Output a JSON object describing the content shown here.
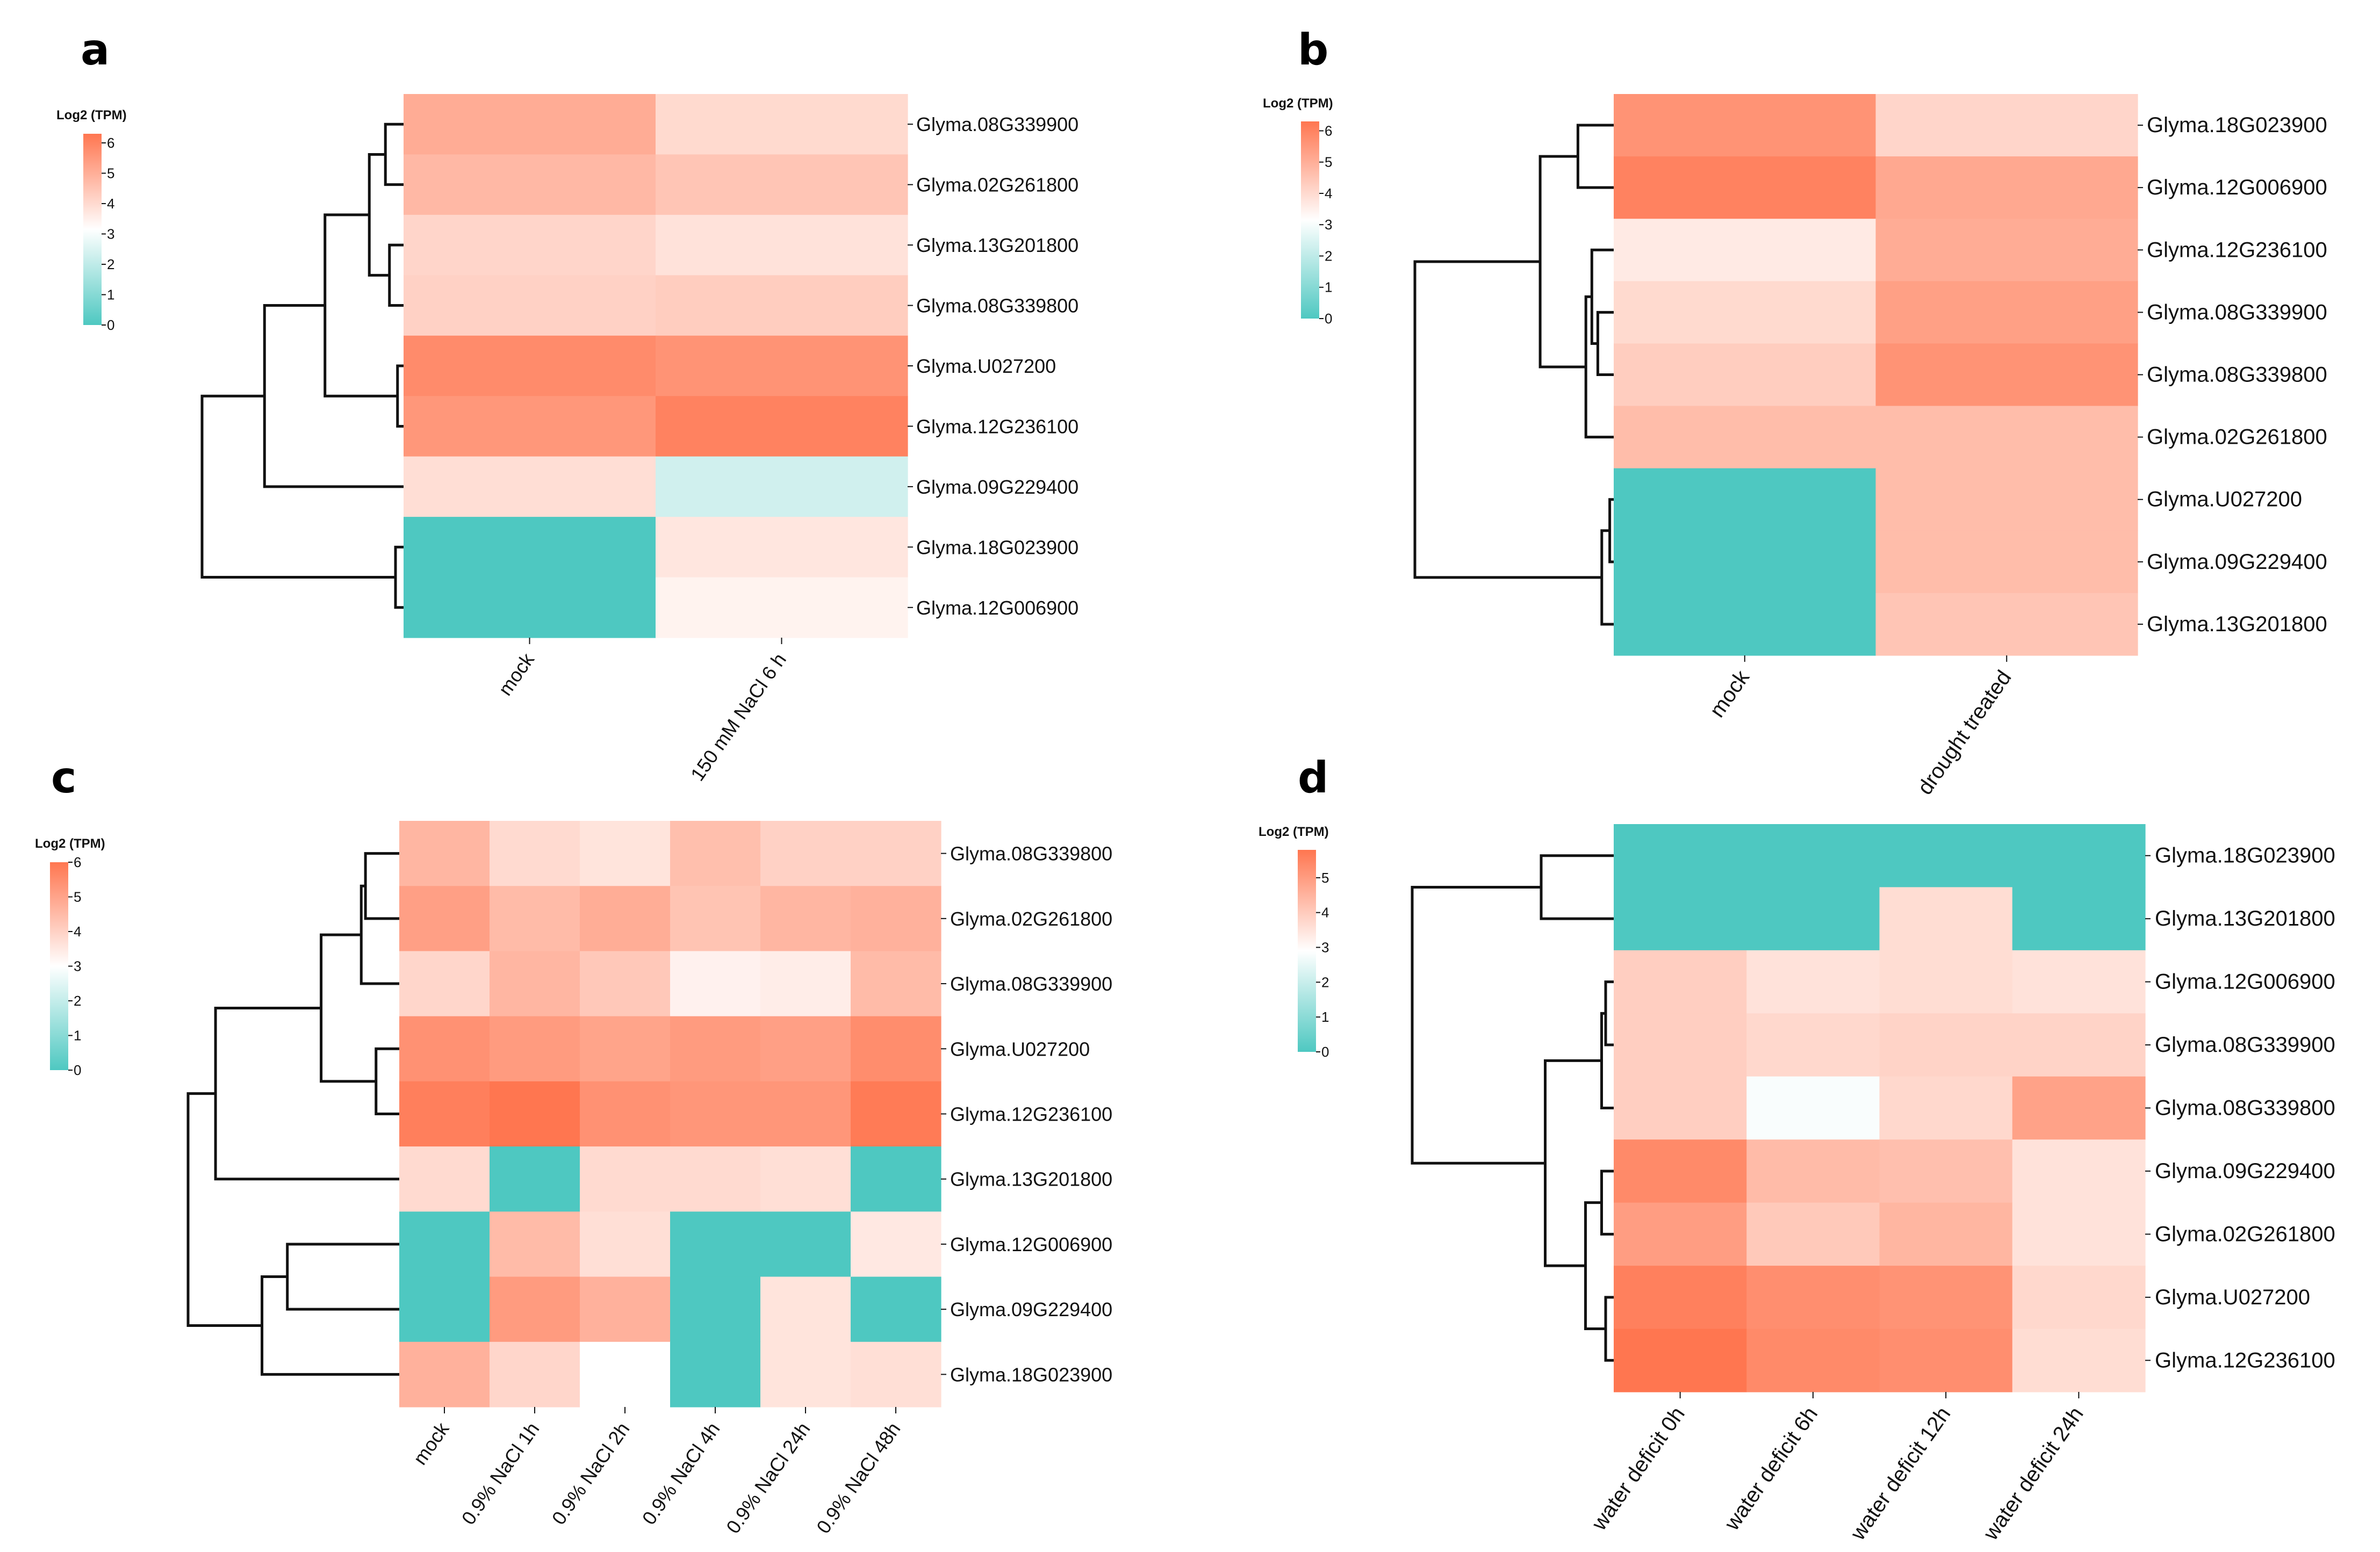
{
  "colors": {
    "low": "#4EC8C1",
    "mid": "#FFFFFF",
    "high": "#FF7650",
    "dendrogram": "#111111"
  },
  "chart_data": [
    {
      "type": "heatmap",
      "panel": "a",
      "legend_title": "Log2 (TPM)",
      "legend_ticks": [
        "0",
        "1",
        "2",
        "3",
        "4",
        "5",
        "6"
      ],
      "range": [
        0,
        6.3
      ],
      "columns": [
        "mock",
        "150 mM NaCl 6 h"
      ],
      "rows": [
        "Glyma.08G339900",
        "Glyma.02G261800",
        "Glyma.13G201800",
        "Glyma.08G339800",
        "Glyma.U027200",
        "Glyma.12G236100",
        "Glyma.09G229400",
        "Glyma.18G023900",
        "Glyma.12G006900"
      ],
      "values": [
        [
          5.0,
          3.9
        ],
        [
          4.7,
          4.4
        ],
        [
          4.0,
          3.7
        ],
        [
          4.1,
          4.2
        ],
        [
          5.8,
          5.6
        ],
        [
          5.5,
          6.0
        ],
        [
          3.8,
          2.2
        ],
        [
          0,
          3.6
        ],
        [
          0,
          3.3
        ]
      ],
      "tree": {
        "h": 1,
        "c": [
          {
            "h": 0.69,
            "c": [
              {
                "h": 0.39,
                "c": [
                  {
                    "h": 0.17,
                    "c": [
                      {
                        "h": 0.09,
                        "c": [
                          0,
                          1
                        ]
                      },
                      {
                        "h": 0.07,
                        "c": [
                          2,
                          3
                        ]
                      }
                    ]
                  },
                  {
                    "h": 0.03,
                    "c": [
                      4,
                      5
                    ]
                  }
                ]
              },
              6
            ]
          },
          {
            "h": 0.04,
            "c": [
              7,
              8
            ]
          }
        ]
      }
    },
    {
      "type": "heatmap",
      "panel": "b",
      "legend_title": "Log2 (TPM)",
      "legend_ticks": [
        "0",
        "1",
        "2",
        "3",
        "4",
        "5",
        "6"
      ],
      "range": [
        0,
        6.3
      ],
      "columns": [
        "mock",
        "drought treated"
      ],
      "rows": [
        "Glyma.18G023900",
        "Glyma.12G006900",
        "Glyma.12G236100",
        "Glyma.08G339900",
        "Glyma.08G339800",
        "Glyma.02G261800",
        "Glyma.U027200",
        "Glyma.09G229400",
        "Glyma.13G201800"
      ],
      "values": [
        [
          5.6,
          4.0
        ],
        [
          6.0,
          5.1
        ],
        [
          3.5,
          5.0
        ],
        [
          3.9,
          5.3
        ],
        [
          4.2,
          5.6
        ],
        [
          4.6,
          4.6
        ],
        [
          0,
          4.6
        ],
        [
          0,
          4.6
        ],
        [
          0,
          4.4
        ]
      ],
      "tree": {
        "h": 1,
        "c": [
          {
            "h": 0.37,
            "c": [
              {
                "h": 0.18,
                "c": [
                  0,
                  1
                ]
              },
              {
                "h": 0.14,
                "c": [
                  {
                    "h": 0.11,
                    "c": [
                      2,
                      {
                        "h": 0.08,
                        "c": [
                          3,
                          4
                        ]
                      }
                    ]
                  },
                  5
                ]
              }
            ]
          },
          {
            "h": 0.06,
            "c": [
              {
                "h": 0.02,
                "c": [
                  6,
                  7
                ]
              },
              8
            ]
          }
        ]
      }
    },
    {
      "type": "heatmap",
      "panel": "c",
      "legend_title": "Log2 (TPM)",
      "legend_ticks": [
        "0",
        "1",
        "2",
        "3",
        "4",
        "5",
        "6"
      ],
      "range": [
        0,
        6
      ],
      "columns": [
        "mock",
        "0.9% NaCl 1h",
        "0.9% NaCl 2h",
        "0.9% NaCl 4h",
        "0.9% NaCl 24h",
        "0.9% NaCl 48h"
      ],
      "rows": [
        "Glyma.08G339800",
        "Glyma.02G261800",
        "Glyma.08G339900",
        "Glyma.U027200",
        "Glyma.12G236100",
        "Glyma.13G201800",
        "Glyma.12G006900",
        "Glyma.09G229400",
        "Glyma.18G023900"
      ],
      "values": [
        [
          4.6,
          3.8,
          3.6,
          4.4,
          4.0,
          4.0
        ],
        [
          5.1,
          4.5,
          4.8,
          4.3,
          4.6,
          4.7
        ],
        [
          3.9,
          4.6,
          4.2,
          3.3,
          3.4,
          4.5
        ],
        [
          5.4,
          5.2,
          5.0,
          5.2,
          5.1,
          5.5
        ],
        [
          5.8,
          6.0,
          5.4,
          5.3,
          5.3,
          5.9
        ],
        [
          3.8,
          0,
          3.8,
          3.8,
          3.7,
          0
        ],
        [
          0,
          4.5,
          3.7,
          0,
          0,
          3.5
        ],
        [
          0,
          5.2,
          4.7,
          0,
          3.6,
          0
        ],
        [
          4.7,
          3.9,
          3.0,
          0,
          3.6,
          3.7
        ]
      ],
      "tree": {
        "h": 1,
        "c": [
          {
            "h": 0.87,
            "c": [
              {
                "h": 0.37,
                "c": [
                  {
                    "h": 0.18,
                    "c": [
                      {
                        "h": 0.16,
                        "c": [
                          0,
                          1
                        ]
                      },
                      2
                    ]
                  },
                  {
                    "h": 0.11,
                    "c": [
                      3,
                      4
                    ]
                  }
                ]
              },
              5
            ]
          },
          {
            "h": 0.65,
            "c": [
              {
                "h": 0.53,
                "c": [
                  6,
                  7
                ]
              },
              8
            ]
          }
        ]
      }
    },
    {
      "type": "heatmap",
      "panel": "d",
      "legend_title": "Log2 (TPM)",
      "legend_ticks": [
        "0",
        "1",
        "2",
        "3",
        "4",
        "5"
      ],
      "range": [
        0,
        5.8
      ],
      "columns": [
        "water deficit 0h",
        "water deficit 6h",
        "water deficit 12h",
        "water deficit 24h"
      ],
      "rows": [
        "Glyma.18G023900",
        "Glyma.13G201800",
        "Glyma.12G006900",
        "Glyma.08G339900",
        "Glyma.08G339800",
        "Glyma.09G229400",
        "Glyma.02G261800",
        "Glyma.U027200",
        "Glyma.12G236100"
      ],
      "values": [
        [
          0,
          0,
          0,
          0
        ],
        [
          0,
          0,
          3.7,
          0
        ],
        [
          4.0,
          3.6,
          3.7,
          3.6
        ],
        [
          4.0,
          3.8,
          3.9,
          3.9
        ],
        [
          4.0,
          2.9,
          3.8,
          4.9
        ],
        [
          5.4,
          4.4,
          4.3,
          3.6
        ],
        [
          5.0,
          4.1,
          4.5,
          3.6
        ],
        [
          5.6,
          5.3,
          5.2,
          3.8
        ],
        [
          5.8,
          5.4,
          5.3,
          3.7
        ]
      ],
      "tree": {
        "h": 1,
        "c": [
          {
            "h": 0.36,
            "c": [
              0,
              1
            ]
          },
          {
            "h": 0.34,
            "c": [
              {
                "h": 0.06,
                "c": [
                  {
                    "h": 0.04,
                    "c": [
                      2,
                      3
                    ]
                  },
                  4
                ]
              },
              {
                "h": 0.14,
                "c": [
                  {
                    "h": 0.06,
                    "c": [
                      5,
                      6
                    ]
                  },
                  {
                    "h": 0.04,
                    "c": [
                      7,
                      8
                    ]
                  }
                ]
              }
            ]
          }
        ]
      }
    }
  ]
}
